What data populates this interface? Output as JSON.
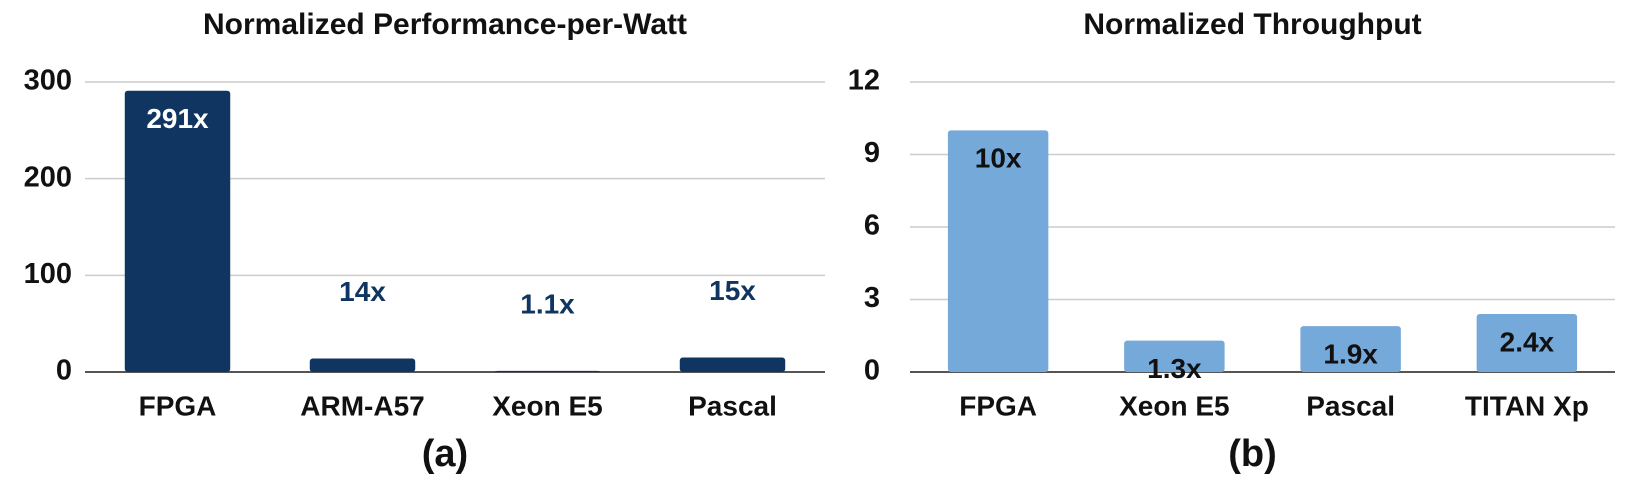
{
  "chart_data": [
    {
      "type": "bar",
      "title": "Normalized Performance-per-Watt",
      "caption": "(a)",
      "categories": [
        "FPGA",
        "ARM-A57",
        "Xeon E5",
        "Pascal"
      ],
      "values": [
        291,
        14,
        1.1,
        15
      ],
      "value_labels": [
        "291x",
        "14x",
        "1.1x",
        "15x"
      ],
      "color": "#0f3560",
      "inside_label_color": "#ffffff",
      "ylim": [
        0,
        300
      ],
      "yticks": [
        0,
        100,
        200,
        300
      ],
      "grid": true
    },
    {
      "type": "bar",
      "title": "Normalized Throughput",
      "caption": "(b)",
      "categories": [
        "FPGA",
        "Xeon E5",
        "Pascal",
        "TITAN Xp"
      ],
      "values": [
        10,
        1.3,
        1.9,
        2.4
      ],
      "value_labels": [
        "10x",
        "1.3x",
        "1.9x",
        "2.4x"
      ],
      "color": "#74a9da",
      "inside_label_color": "#111111",
      "ylim": [
        0,
        12
      ],
      "yticks": [
        0,
        3,
        6,
        9,
        12
      ],
      "grid": true
    }
  ]
}
